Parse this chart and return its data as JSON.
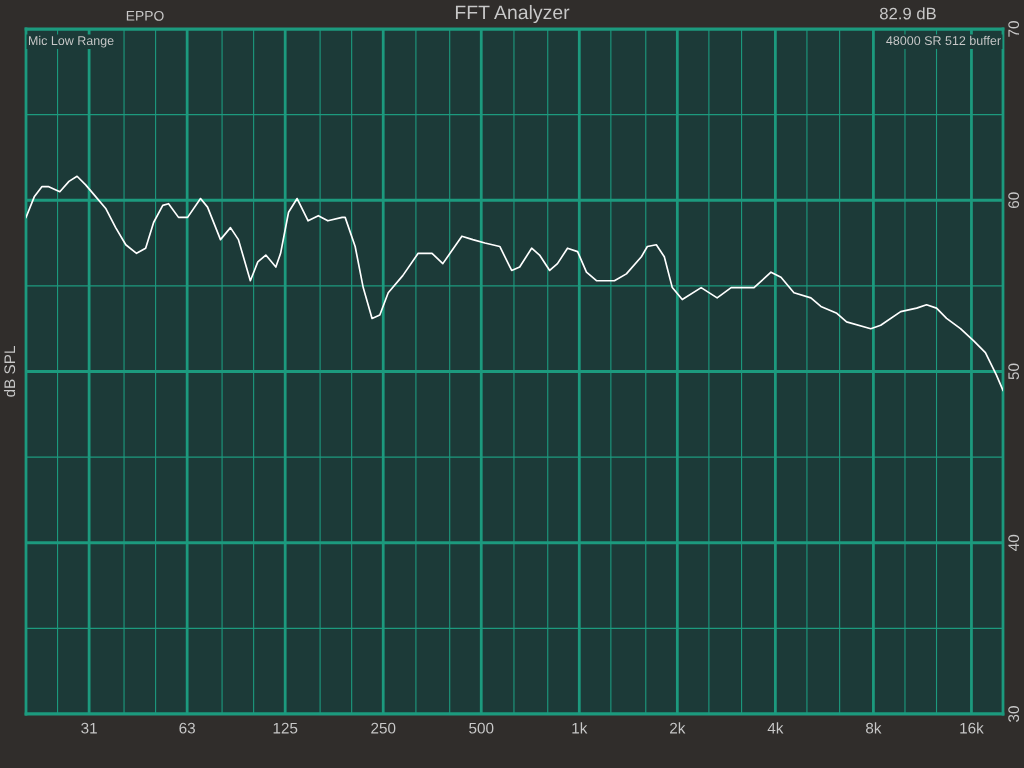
{
  "chart_data": {
    "type": "line",
    "title": "FFT Analyzer",
    "ylabel": "dB SPL",
    "annotations": [
      "EPPO",
      "82.9 dB",
      "Mic Low Range",
      "48000 SR 512 buffer"
    ],
    "log": "x",
    "grid": true,
    "legend": false,
    "marker": "none",
    "line_style": "solid",
    "xlim": [
      20,
      20000
    ],
    "ylim": [
      30,
      70
    ],
    "xticks": [
      {
        "value": 25,
        "label": null
      },
      {
        "value": 31.25,
        "label": "31"
      },
      {
        "value": 40,
        "label": null
      },
      {
        "value": 50,
        "label": null
      },
      {
        "value": 62.5,
        "label": "63"
      },
      {
        "value": 80,
        "label": null
      },
      {
        "value": 100,
        "label": null
      },
      {
        "value": 125,
        "label": "125"
      },
      {
        "value": 160,
        "label": null
      },
      {
        "value": 200,
        "label": null
      },
      {
        "value": 250,
        "label": "250"
      },
      {
        "value": 315,
        "label": null
      },
      {
        "value": 400,
        "label": null
      },
      {
        "value": 500,
        "label": "500"
      },
      {
        "value": 630,
        "label": null
      },
      {
        "value": 800,
        "label": null
      },
      {
        "value": 1000,
        "label": "1k"
      },
      {
        "value": 1250,
        "label": null
      },
      {
        "value": 1600,
        "label": null
      },
      {
        "value": 2000,
        "label": "2k"
      },
      {
        "value": 2500,
        "label": null
      },
      {
        "value": 3150,
        "label": null
      },
      {
        "value": 4000,
        "label": "4k"
      },
      {
        "value": 5000,
        "label": null
      },
      {
        "value": 6300,
        "label": null
      },
      {
        "value": 8000,
        "label": "8k"
      },
      {
        "value": 10000,
        "label": null
      },
      {
        "value": 12500,
        "label": null
      },
      {
        "value": 16000,
        "label": "16k"
      }
    ],
    "yticks": [
      30,
      {
        "value": 35,
        "label": null
      },
      40,
      {
        "value": 45,
        "label": null
      },
      50,
      {
        "value": 55,
        "label": null
      },
      60,
      {
        "value": 65,
        "label": null
      },
      70
    ],
    "series": [
      {
        "color": "#ffffff",
        "x": [
          20,
          21.2,
          22.4,
          23.4,
          25.4,
          27.1,
          28.7,
          30.5,
          32.1,
          35.2,
          37.7,
          40.5,
          43.7,
          46.6,
          49.3,
          52.6,
          54.8,
          58.8,
          62.7,
          68.7,
          72.2,
          79.1,
          84.9,
          89.8,
          97.7,
          103,
          109,
          117,
          121,
          128,
          136,
          147,
          158,
          169,
          187,
          191,
          205,
          217,
          231,
          244,
          259,
          287,
          320,
          353,
          381,
          436,
          471,
          513,
          570,
          620,
          656,
          714,
          755,
          811,
          857,
          920,
          988,
          1052,
          1129,
          1282,
          1395,
          1551,
          1618,
          1724,
          1824,
          1930,
          2071,
          2367,
          2650,
          2926,
          3440,
          3878,
          4162,
          4562,
          5142,
          5518,
          6178,
          6618,
          7852,
          8424,
          9702,
          10860,
          11650,
          12500,
          13420,
          14810,
          16230,
          17660,
          19080,
          20000
        ],
        "values": [
          59.0,
          60.2,
          60.8,
          60.8,
          60.5,
          61.1,
          61.4,
          60.9,
          60.4,
          59.5,
          58.4,
          57.4,
          56.9,
          57.2,
          58.7,
          59.7,
          59.8,
          59.0,
          59.0,
          60.1,
          59.6,
          57.7,
          58.4,
          57.7,
          55.3,
          56.4,
          56.8,
          56.1,
          56.9,
          59.3,
          60.1,
          58.8,
          59.1,
          58.8,
          59.0,
          59.0,
          57.3,
          54.9,
          53.1,
          53.3,
          54.6,
          55.6,
          56.9,
          56.9,
          56.3,
          57.9,
          57.7,
          57.5,
          57.3,
          55.9,
          56.1,
          57.2,
          56.8,
          55.9,
          56.3,
          57.2,
          57.0,
          55.8,
          55.3,
          55.3,
          55.7,
          56.7,
          57.3,
          57.4,
          56.7,
          54.9,
          54.2,
          54.9,
          54.3,
          54.9,
          54.9,
          55.8,
          55.5,
          54.6,
          54.3,
          53.8,
          53.4,
          52.9,
          52.5,
          52.7,
          53.5,
          53.7,
          53.9,
          53.7,
          53.1,
          52.5,
          51.8,
          51.1,
          49.8,
          48.9
        ]
      }
    ]
  }
}
